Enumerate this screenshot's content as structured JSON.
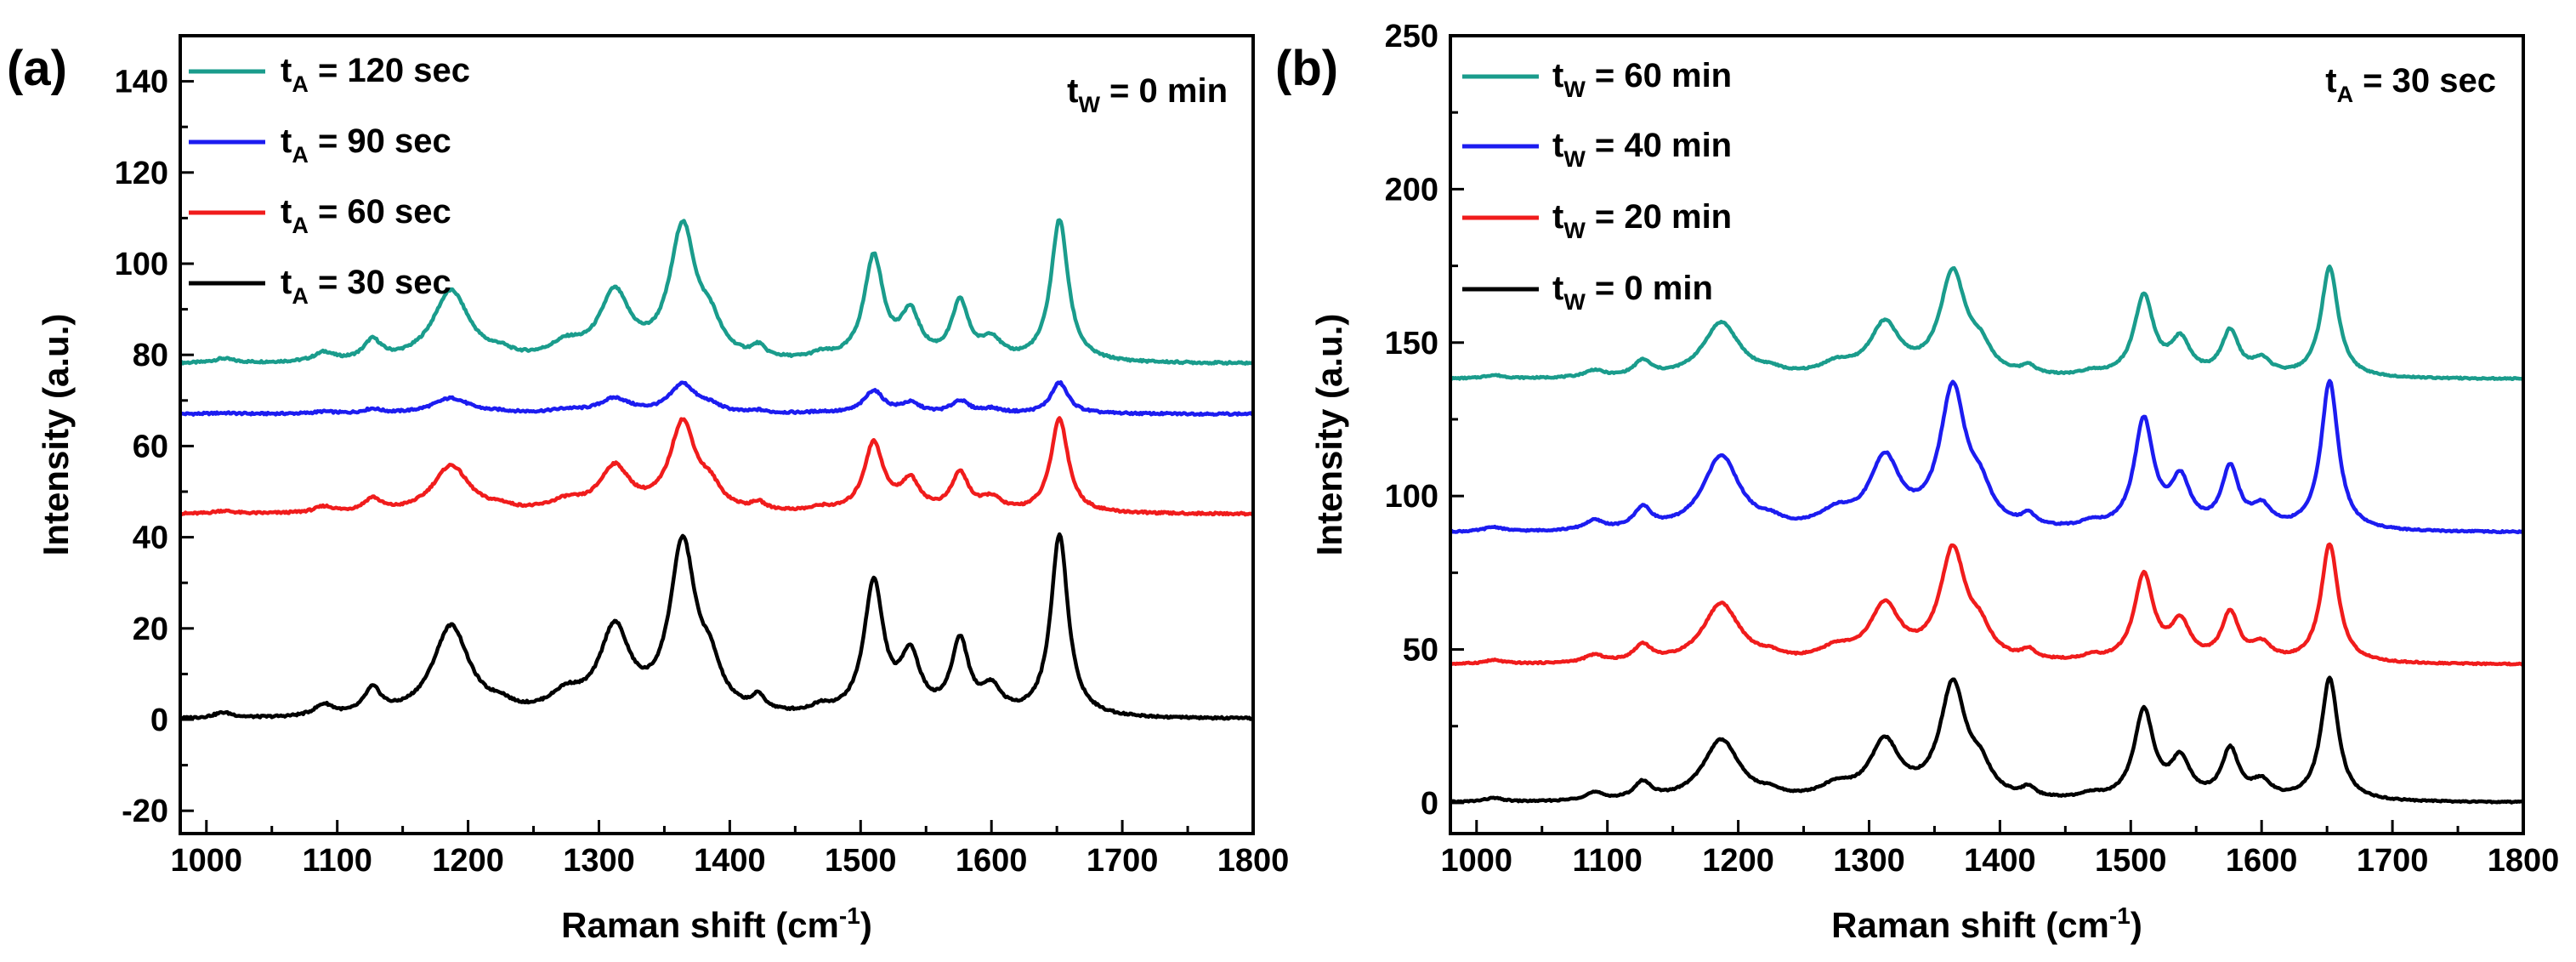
{
  "chart_data": [
    {
      "type": "line",
      "panel_label": "(a)",
      "xlabel": "Raman shift (cm",
      "xlabel_sup": "-1",
      "xlabel_end": ")",
      "ylabel": "Intensity (a.u.)",
      "xlim": [
        980,
        1800
      ],
      "ylim": [
        -25,
        150
      ],
      "x_ticks": [
        1000,
        1100,
        1200,
        1300,
        1400,
        1500,
        1600,
        1700,
        1800
      ],
      "y_ticks": [
        -20,
        0,
        20,
        40,
        60,
        80,
        100,
        120,
        140
      ],
      "condition": {
        "main": "t",
        "sub": "W",
        "rest": " = 0 min"
      },
      "legend": [
        {
          "main": "t",
          "sub": "A",
          "rest": " = 120 sec",
          "color": "#1a9c8c"
        },
        {
          "main": "t",
          "sub": "A",
          "rest": " = 90 sec",
          "color": "#1c1cf0"
        },
        {
          "main": "t",
          "sub": "A",
          "rest": " = 60 sec",
          "color": "#f01c1c"
        },
        {
          "main": "t",
          "sub": "A",
          "rest": " = 30 sec",
          "color": "#000000"
        }
      ],
      "series": [
        {
          "name": "t_A = 120 sec",
          "color": "#1a9c8c",
          "baseline": 78,
          "scale": 0.78
        },
        {
          "name": "t_A = 90 sec",
          "color": "#1c1cf0",
          "baseline": 67,
          "scale": 0.17
        },
        {
          "name": "t_A = 60 sec",
          "color": "#f01c1c",
          "baseline": 45,
          "scale": 0.52
        },
        {
          "name": "t_A = 30 sec",
          "color": "#000000",
          "baseline": 0,
          "scale": 1.0
        }
      ]
    },
    {
      "type": "line",
      "panel_label": "(b)",
      "xlabel": "Raman shift (cm",
      "xlabel_sup": "-1",
      "xlabel_end": ")",
      "ylabel": "Intensity (a.u.)",
      "xlim": [
        980,
        1800
      ],
      "ylim": [
        -10,
        250
      ],
      "x_ticks": [
        1000,
        1100,
        1200,
        1300,
        1400,
        1500,
        1600,
        1700,
        1800
      ],
      "y_ticks": [
        0,
        50,
        100,
        150,
        200,
        250
      ],
      "condition": {
        "main": "t",
        "sub": "A",
        "rest": " = 30 sec"
      },
      "legend": [
        {
          "main": "t",
          "sub": "W",
          "rest": " = 60 min",
          "color": "#1a9c8c"
        },
        {
          "main": "t",
          "sub": "W",
          "rest": " = 40 min",
          "color": "#1c1cf0"
        },
        {
          "main": "t",
          "sub": "W",
          "rest": " = 20 min",
          "color": "#f01c1c"
        },
        {
          "main": "t",
          "sub": "W",
          "rest": " = 0 min",
          "color": "#000000"
        }
      ],
      "series": [
        {
          "name": "t_W = 60 min",
          "color": "#1a9c8c",
          "baseline": 138,
          "scale": 0.9
        },
        {
          "name": "t_W = 40 min",
          "color": "#1c1cf0",
          "baseline": 88,
          "scale": 1.22
        },
        {
          "name": "t_W = 20 min",
          "color": "#f01c1c",
          "baseline": 45,
          "scale": 0.97
        },
        {
          "name": "t_W = 0 min",
          "color": "#000000",
          "baseline": 0,
          "scale": 1.0
        }
      ]
    }
  ],
  "spectrum_peaks": [
    {
      "x": 1013,
      "h": 1.2,
      "w": 9
    },
    {
      "x": 1090,
      "h": 2.5,
      "w": 9
    },
    {
      "x": 1127,
      "h": 5.5,
      "w": 8
    },
    {
      "x": 1187,
      "h": 20,
      "w": 17
    },
    {
      "x": 1225,
      "h": 1.5,
      "w": 9
    },
    {
      "x": 1275,
      "h": 4,
      "w": 15
    },
    {
      "x": 1312,
      "h": 18.5,
      "w": 14
    },
    {
      "x": 1364,
      "h": 37,
      "w": 12
    },
    {
      "x": 1385,
      "h": 8,
      "w": 10
    },
    {
      "x": 1422,
      "h": 3,
      "w": 6
    },
    {
      "x": 1470,
      "h": 1.5,
      "w": 9
    },
    {
      "x": 1510,
      "h": 29,
      "w": 9
    },
    {
      "x": 1538,
      "h": 12.5,
      "w": 9
    },
    {
      "x": 1576,
      "h": 16,
      "w": 8
    },
    {
      "x": 1600,
      "h": 5.5,
      "w": 9
    },
    {
      "x": 1652,
      "h": 40,
      "w": 8
    }
  ]
}
